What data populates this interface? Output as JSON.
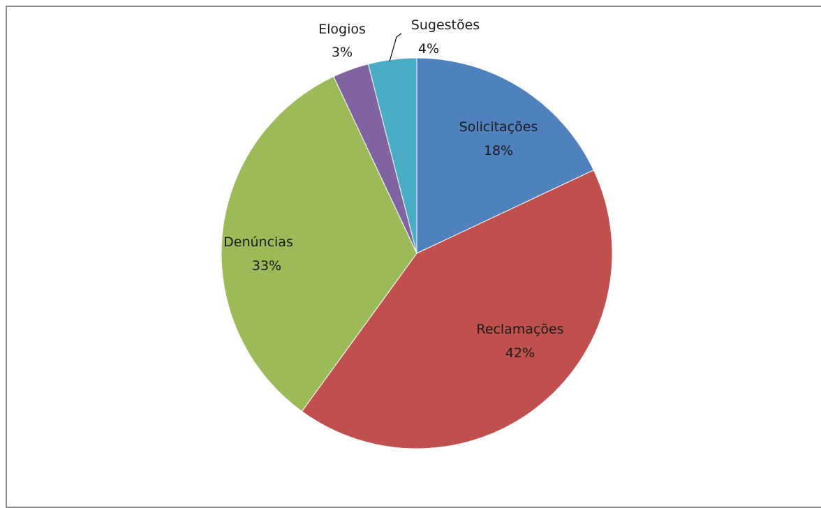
{
  "chart_data": {
    "type": "pie",
    "title": "",
    "slices": [
      {
        "label": "Solicitações",
        "value": 18,
        "percent_label": "18%",
        "color": "#4f81bd"
      },
      {
        "label": "Reclamações",
        "value": 42,
        "percent_label": "42%",
        "color": "#c0504d"
      },
      {
        "label": "Denúncias",
        "value": 33,
        "percent_label": "33%",
        "color": "#9bbb59"
      },
      {
        "label": "Elogios",
        "value": 3,
        "percent_label": "3%",
        "color": "#8064a2"
      },
      {
        "label": "Sugestões",
        "value": 4,
        "percent_label": "4%",
        "color": "#4bacc6"
      }
    ],
    "start_angle_deg": 0,
    "direction": "clockwise",
    "data_labels": "category-and-percent",
    "legend": "none"
  }
}
